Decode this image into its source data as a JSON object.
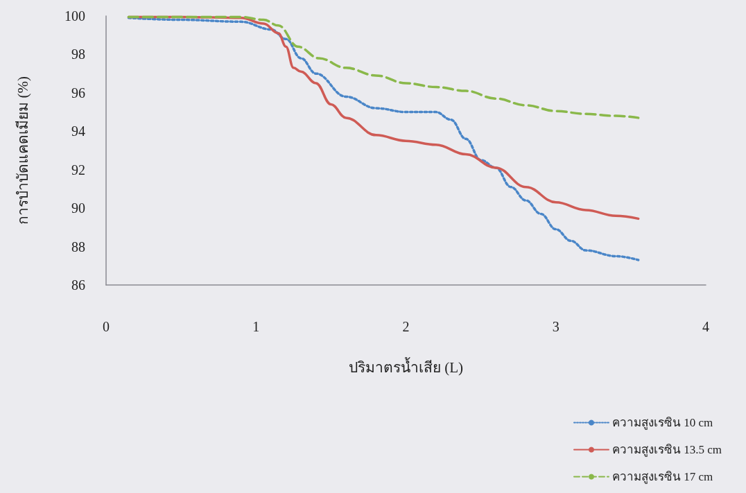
{
  "chart_data": {
    "type": "line",
    "xlabel": "ปริมาตรน้ำเสีย (L)",
    "ylabel": "การบำบัดแคดเมียม (%)",
    "xlim": [
      0,
      4
    ],
    "xticks": [
      0,
      1,
      2,
      3,
      4
    ],
    "ylim": [
      86,
      100
    ],
    "yticks": [
      86,
      88,
      90,
      92,
      94,
      96,
      98,
      100
    ],
    "grid": false,
    "legend": "bottom right",
    "marker": "none",
    "series": [
      {
        "name": "ความสูงเรซิน 10 cm",
        "color": "#4a86c8",
        "line_style": "dotted",
        "x": [
          0.15,
          0.5,
          0.9,
          1.1,
          1.2,
          1.3,
          1.4,
          1.6,
          1.8,
          2.0,
          2.2,
          2.3,
          2.4,
          2.5,
          2.6,
          2.7,
          2.8,
          2.9,
          3.0,
          3.1,
          3.2,
          3.4,
          3.55
        ],
        "values": [
          99.9,
          99.8,
          99.7,
          99.3,
          98.8,
          97.8,
          97.0,
          95.8,
          95.2,
          95.0,
          95.0,
          94.6,
          93.6,
          92.5,
          92.1,
          91.1,
          90.4,
          89.7,
          88.9,
          88.3,
          87.8,
          87.5,
          87.3
        ]
      },
      {
        "name": "ความสูงเรซิน 13.5 cm",
        "color": "#cf5b55",
        "line_style": "solid",
        "x": [
          0.15,
          0.5,
          0.9,
          1.05,
          1.15,
          1.2,
          1.25,
          1.3,
          1.4,
          1.5,
          1.6,
          1.8,
          2.0,
          2.2,
          2.4,
          2.6,
          2.8,
          3.0,
          3.2,
          3.4,
          3.55
        ],
        "values": [
          99.95,
          99.95,
          99.9,
          99.6,
          99.1,
          98.4,
          97.3,
          97.1,
          96.5,
          95.4,
          94.7,
          93.8,
          93.5,
          93.3,
          92.8,
          92.1,
          91.1,
          90.3,
          89.9,
          89.6,
          89.45
        ]
      },
      {
        "name": "ความสูงเรซิน 17 cm",
        "color": "#8ab84a",
        "line_style": "dashed",
        "x": [
          0.15,
          0.5,
          0.9,
          1.05,
          1.15,
          1.28,
          1.42,
          1.6,
          1.8,
          2.0,
          2.2,
          2.4,
          2.6,
          2.8,
          3.0,
          3.2,
          3.4,
          3.55
        ],
        "values": [
          99.95,
          99.95,
          99.95,
          99.8,
          99.5,
          98.4,
          97.8,
          97.3,
          96.9,
          96.5,
          96.3,
          96.1,
          95.7,
          95.35,
          95.05,
          94.9,
          94.8,
          94.7
        ]
      }
    ]
  }
}
